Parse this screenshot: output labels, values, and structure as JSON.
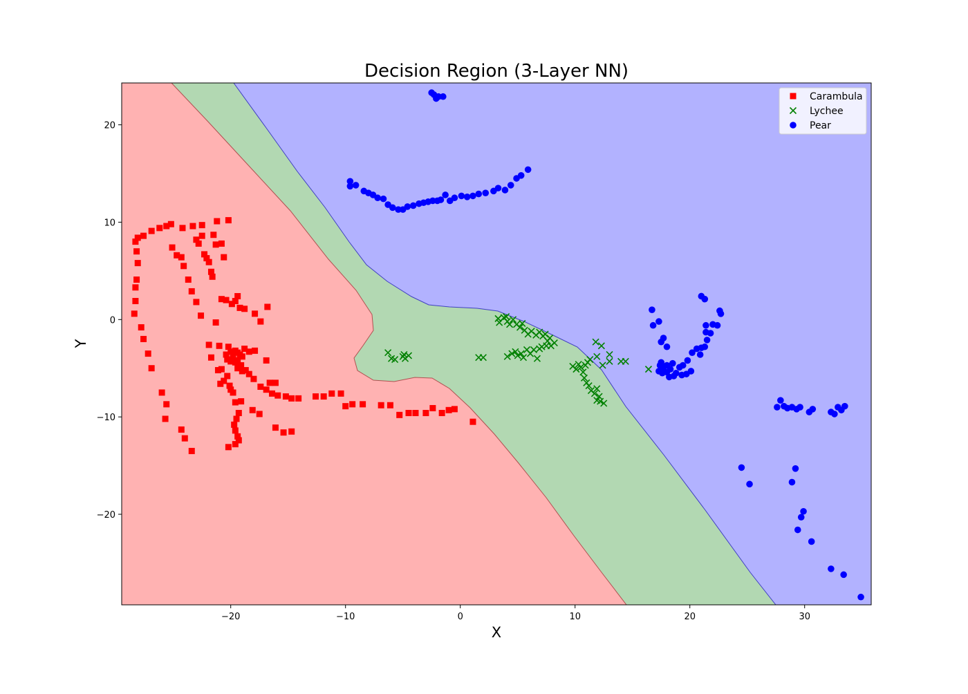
{
  "chart_data": {
    "type": "scatter",
    "title": "Decision Region (3-Layer NN)",
    "xlabel": "X",
    "ylabel": "Y",
    "xlim": [
      -29.5,
      35.8
    ],
    "ylim": [
      -29.3,
      24.3
    ],
    "xticks": [
      -20,
      -10,
      0,
      10,
      20,
      30
    ],
    "yticks": [
      -20,
      -10,
      0,
      10,
      20
    ],
    "grid": false,
    "legend_position": "top-right",
    "regions": [
      {
        "class": "Carambula",
        "color": "#ffb2b2",
        "edge": "#b05050"
      },
      {
        "class": "Lychee",
        "color": "#b2d8b2",
        "edge": "#4a8a4a"
      },
      {
        "class": "Pear",
        "color": "#b2b2ff",
        "edge": "#4040c0"
      }
    ],
    "series": [
      {
        "name": "Carambula",
        "marker": "square",
        "color": "#ff0000",
        "points": [
          [
            -28.3,
            8.0
          ],
          [
            -28.1,
            8.4
          ],
          [
            -27.6,
            8.6
          ],
          [
            -26.9,
            9.1
          ],
          [
            -26.2,
            9.4
          ],
          [
            -25.6,
            9.6
          ],
          [
            -25.2,
            9.8
          ],
          [
            -24.2,
            9.4
          ],
          [
            -23.3,
            9.6
          ],
          [
            -22.5,
            9.7
          ],
          [
            -21.2,
            10.1
          ],
          [
            -20.2,
            10.2
          ],
          [
            -28.2,
            7.0
          ],
          [
            -28.1,
            5.8
          ],
          [
            -28.2,
            4.1
          ],
          [
            -28.3,
            3.3
          ],
          [
            -28.3,
            1.9
          ],
          [
            -28.4,
            0.6
          ],
          [
            -27.8,
            -0.8
          ],
          [
            -27.6,
            -2.0
          ],
          [
            -27.2,
            -3.5
          ],
          [
            -26.9,
            -5.0
          ],
          [
            -25.1,
            7.4
          ],
          [
            -24.7,
            6.6
          ],
          [
            -24.3,
            6.4
          ],
          [
            -24.1,
            5.5
          ],
          [
            -23.7,
            4.1
          ],
          [
            -23.4,
            2.9
          ],
          [
            -23.0,
            1.8
          ],
          [
            -22.6,
            0.4
          ],
          [
            -23.0,
            8.2
          ],
          [
            -22.8,
            7.8
          ],
          [
            -22.5,
            8.6
          ],
          [
            -22.3,
            6.7
          ],
          [
            -22.1,
            6.3
          ],
          [
            -21.9,
            5.9
          ],
          [
            -21.7,
            4.9
          ],
          [
            -21.6,
            4.4
          ],
          [
            -21.3,
            7.7
          ],
          [
            -21.5,
            8.7
          ],
          [
            -20.8,
            7.8
          ],
          [
            -20.6,
            6.4
          ],
          [
            -20.8,
            2.1
          ],
          [
            -20.4,
            2.0
          ],
          [
            -19.9,
            1.6
          ],
          [
            -19.6,
            1.9
          ],
          [
            -19.4,
            2.4
          ],
          [
            -19.2,
            1.2
          ],
          [
            -18.8,
            1.1
          ],
          [
            -17.9,
            0.6
          ],
          [
            -17.4,
            -0.2
          ],
          [
            -16.8,
            1.3
          ],
          [
            -21.3,
            -0.3
          ],
          [
            -21.9,
            -2.6
          ],
          [
            -21.0,
            -2.7
          ],
          [
            -20.2,
            -2.8
          ],
          [
            -21.7,
            -3.9
          ],
          [
            -20.4,
            -3.6
          ],
          [
            -20.0,
            -3.3
          ],
          [
            -19.8,
            -3.5
          ],
          [
            -19.6,
            -3.2
          ],
          [
            -19.4,
            -3.4
          ],
          [
            -19.2,
            -3.6
          ],
          [
            -19.0,
            -3.8
          ],
          [
            -18.8,
            -3.0
          ],
          [
            -18.4,
            -3.3
          ],
          [
            -17.9,
            -3.2
          ],
          [
            -20.3,
            -4.1
          ],
          [
            -20.0,
            -4.3
          ],
          [
            -19.8,
            -4.0
          ],
          [
            -19.6,
            -4.4
          ],
          [
            -19.4,
            -4.2
          ],
          [
            -19.1,
            -4.7
          ],
          [
            -19.4,
            -5.0
          ],
          [
            -19.0,
            -5.3
          ],
          [
            -18.7,
            -5.2
          ],
          [
            -18.4,
            -5.6
          ],
          [
            -18.0,
            -6.1
          ],
          [
            -17.4,
            -6.9
          ],
          [
            -16.9,
            -7.2
          ],
          [
            -16.4,
            -7.6
          ],
          [
            -15.9,
            -7.8
          ],
          [
            -15.2,
            -7.9
          ],
          [
            -14.7,
            -8.1
          ],
          [
            -14.1,
            -8.1
          ],
          [
            -16.9,
            -4.2
          ],
          [
            -16.6,
            -6.5
          ],
          [
            -16.1,
            -6.5
          ],
          [
            -21.1,
            -5.2
          ],
          [
            -20.8,
            -5.1
          ],
          [
            -20.6,
            -6.3
          ],
          [
            -20.9,
            -6.6
          ],
          [
            -20.3,
            -5.8
          ],
          [
            -20.1,
            -6.8
          ],
          [
            -20.0,
            -7.2
          ],
          [
            -19.8,
            -7.5
          ],
          [
            -19.6,
            -8.5
          ],
          [
            -19.1,
            -8.4
          ],
          [
            -19.3,
            -9.6
          ],
          [
            -19.5,
            -10.2
          ],
          [
            -19.7,
            -10.8
          ],
          [
            -19.6,
            -11.4
          ],
          [
            -19.4,
            -12.0
          ],
          [
            -19.3,
            -12.4
          ],
          [
            -19.6,
            -12.8
          ],
          [
            -20.2,
            -13.1
          ],
          [
            -18.1,
            -9.3
          ],
          [
            -17.5,
            -9.7
          ],
          [
            -16.1,
            -11.1
          ],
          [
            -15.4,
            -11.6
          ],
          [
            -14.7,
            -11.5
          ],
          [
            -26.0,
            -7.5
          ],
          [
            -25.6,
            -8.7
          ],
          [
            -25.7,
            -10.2
          ],
          [
            -24.3,
            -11.3
          ],
          [
            -24.0,
            -12.2
          ],
          [
            -23.4,
            -13.5
          ],
          [
            -12.6,
            -7.9
          ],
          [
            -11.9,
            -7.9
          ],
          [
            -11.2,
            -7.6
          ],
          [
            -10.4,
            -7.6
          ],
          [
            -10.0,
            -8.9
          ],
          [
            -9.4,
            -8.7
          ],
          [
            -8.5,
            -8.7
          ],
          [
            -6.9,
            -8.8
          ],
          [
            -6.1,
            -8.8
          ],
          [
            -5.3,
            -9.8
          ],
          [
            -4.5,
            -9.6
          ],
          [
            -3.9,
            -9.6
          ],
          [
            -3.0,
            -9.6
          ],
          [
            -2.4,
            -9.1
          ],
          [
            -1.6,
            -9.6
          ],
          [
            -1.0,
            -9.3
          ],
          [
            -0.5,
            -9.2
          ],
          [
            1.1,
            -10.5
          ]
        ]
      },
      {
        "name": "Lychee",
        "marker": "x",
        "color": "#008000",
        "points": [
          [
            -6.3,
            -3.4
          ],
          [
            -6.0,
            -4.0
          ],
          [
            -5.7,
            -4.1
          ],
          [
            -5.0,
            -3.8
          ],
          [
            -4.9,
            -3.6
          ],
          [
            -4.8,
            -4.0
          ],
          [
            -4.5,
            -3.7
          ],
          [
            1.6,
            -3.9
          ],
          [
            2.0,
            -3.9
          ],
          [
            3.3,
            0.1
          ],
          [
            3.4,
            -0.3
          ],
          [
            3.8,
            0.2
          ],
          [
            4.0,
            0.3
          ],
          [
            4.1,
            -0.2
          ],
          [
            4.3,
            -0.5
          ],
          [
            4.6,
            0.0
          ],
          [
            4.9,
            -0.5
          ],
          [
            5.2,
            -0.8
          ],
          [
            5.4,
            -0.4
          ],
          [
            5.6,
            -1.1
          ],
          [
            5.9,
            -1.5
          ],
          [
            6.2,
            -1.2
          ],
          [
            6.6,
            -1.6
          ],
          [
            6.9,
            -1.3
          ],
          [
            7.2,
            -1.7
          ],
          [
            7.4,
            -1.5
          ],
          [
            7.6,
            -2.2
          ],
          [
            7.8,
            -1.9
          ],
          [
            7.9,
            -2.7
          ],
          [
            8.2,
            -2.4
          ],
          [
            7.5,
            -2.7
          ],
          [
            4.1,
            -3.8
          ],
          [
            4.5,
            -3.5
          ],
          [
            4.8,
            -3.3
          ],
          [
            5.0,
            -3.7
          ],
          [
            5.3,
            -3.5
          ],
          [
            5.5,
            -3.9
          ],
          [
            5.8,
            -3.1
          ],
          [
            6.1,
            -3.5
          ],
          [
            6.4,
            -3.1
          ],
          [
            6.7,
            -4.0
          ],
          [
            6.9,
            -3.0
          ],
          [
            7.1,
            -2.8
          ],
          [
            9.8,
            -4.8
          ],
          [
            10.1,
            -5.1
          ],
          [
            10.3,
            -4.6
          ],
          [
            10.5,
            -4.9
          ],
          [
            10.7,
            -5.4
          ],
          [
            10.9,
            -4.7
          ],
          [
            11.1,
            -4.4
          ],
          [
            11.3,
            -4.1
          ],
          [
            10.8,
            -6.0
          ],
          [
            11.0,
            -6.5
          ],
          [
            11.2,
            -6.8
          ],
          [
            11.4,
            -7.3
          ],
          [
            11.7,
            -7.6
          ],
          [
            11.9,
            -7.1
          ],
          [
            12.1,
            -7.9
          ],
          [
            11.9,
            -8.3
          ],
          [
            12.2,
            -8.4
          ],
          [
            12.5,
            -8.6
          ],
          [
            11.8,
            -2.3
          ],
          [
            12.3,
            -2.7
          ],
          [
            11.9,
            -3.8
          ],
          [
            12.4,
            -4.7
          ],
          [
            13.0,
            -3.6
          ],
          [
            13.0,
            -4.3
          ],
          [
            14.0,
            -4.3
          ],
          [
            14.4,
            -4.3
          ],
          [
            16.4,
            -5.1
          ]
        ]
      },
      {
        "name": "Pear",
        "marker": "circle",
        "color": "#0000ff",
        "points": [
          [
            -2.5,
            23.3
          ],
          [
            -2.3,
            23.1
          ],
          [
            -2.1,
            22.7
          ],
          [
            -1.9,
            22.9
          ],
          [
            -1.5,
            22.9
          ],
          [
            -9.6,
            14.2
          ],
          [
            -9.6,
            13.7
          ],
          [
            -9.1,
            13.8
          ],
          [
            -8.4,
            13.2
          ],
          [
            -8.0,
            13.0
          ],
          [
            -7.6,
            12.8
          ],
          [
            -7.2,
            12.5
          ],
          [
            -6.7,
            12.4
          ],
          [
            -6.3,
            11.8
          ],
          [
            -5.9,
            11.5
          ],
          [
            -5.4,
            11.3
          ],
          [
            -5.0,
            11.3
          ],
          [
            -4.6,
            11.6
          ],
          [
            -4.1,
            11.7
          ],
          [
            -3.6,
            11.9
          ],
          [
            -3.2,
            12.0
          ],
          [
            -2.8,
            12.1
          ],
          [
            -2.4,
            12.2
          ],
          [
            -2.0,
            12.2
          ],
          [
            -1.7,
            12.3
          ],
          [
            -1.3,
            12.8
          ],
          [
            -0.9,
            12.2
          ],
          [
            -0.5,
            12.5
          ],
          [
            0.1,
            12.7
          ],
          [
            0.6,
            12.6
          ],
          [
            1.1,
            12.7
          ],
          [
            1.6,
            12.9
          ],
          [
            2.2,
            13.0
          ],
          [
            2.9,
            13.2
          ],
          [
            3.3,
            13.5
          ],
          [
            3.9,
            13.3
          ],
          [
            4.4,
            13.8
          ],
          [
            4.9,
            14.5
          ],
          [
            5.3,
            14.8
          ],
          [
            5.9,
            15.4
          ],
          [
            16.7,
            1.0
          ],
          [
            16.8,
            -0.6
          ],
          [
            17.3,
            -0.2
          ],
          [
            17.5,
            -2.3
          ],
          [
            17.7,
            -1.9
          ],
          [
            18.0,
            -2.8
          ],
          [
            17.5,
            -4.4
          ],
          [
            17.7,
            -4.9
          ],
          [
            18.0,
            -4.7
          ],
          [
            18.3,
            -5.1
          ],
          [
            18.5,
            -4.5
          ],
          [
            18.8,
            -5.5
          ],
          [
            19.1,
            -4.9
          ],
          [
            19.4,
            -4.7
          ],
          [
            19.7,
            -5.6
          ],
          [
            20.1,
            -5.3
          ],
          [
            19.8,
            -4.2
          ],
          [
            20.2,
            -3.4
          ],
          [
            20.6,
            -3.0
          ],
          [
            21.0,
            -2.9
          ],
          [
            20.9,
            -3.6
          ],
          [
            21.3,
            -2.8
          ],
          [
            21.5,
            -2.1
          ],
          [
            21.4,
            -1.3
          ],
          [
            21.8,
            -1.4
          ],
          [
            22.0,
            -0.5
          ],
          [
            22.4,
            -0.6
          ],
          [
            22.7,
            0.6
          ],
          [
            21.4,
            -0.6
          ],
          [
            21.0,
            2.4
          ],
          [
            21.3,
            2.1
          ],
          [
            22.6,
            0.9
          ],
          [
            17.3,
            -5.3
          ],
          [
            17.6,
            -5.5
          ],
          [
            18.2,
            -5.9
          ],
          [
            18.6,
            -5.8
          ],
          [
            19.3,
            -5.7
          ],
          [
            17.4,
            -4.7
          ],
          [
            18.0,
            -5.4
          ],
          [
            27.6,
            -9.0
          ],
          [
            27.9,
            -8.3
          ],
          [
            28.2,
            -8.9
          ],
          [
            28.5,
            -9.1
          ],
          [
            28.9,
            -9.0
          ],
          [
            29.3,
            -9.2
          ],
          [
            29.6,
            -9.0
          ],
          [
            30.4,
            -9.5
          ],
          [
            30.7,
            -9.2
          ],
          [
            32.3,
            -9.5
          ],
          [
            32.6,
            -9.7
          ],
          [
            32.9,
            -9.0
          ],
          [
            33.2,
            -9.3
          ],
          [
            33.5,
            -8.9
          ],
          [
            24.5,
            -15.2
          ],
          [
            25.2,
            -16.9
          ],
          [
            28.9,
            -16.7
          ],
          [
            29.2,
            -15.3
          ],
          [
            29.9,
            -19.7
          ],
          [
            29.7,
            -20.3
          ],
          [
            29.4,
            -21.6
          ],
          [
            30.6,
            -22.8
          ],
          [
            32.3,
            -25.6
          ],
          [
            33.4,
            -26.2
          ],
          [
            34.9,
            -28.5
          ]
        ]
      }
    ]
  }
}
